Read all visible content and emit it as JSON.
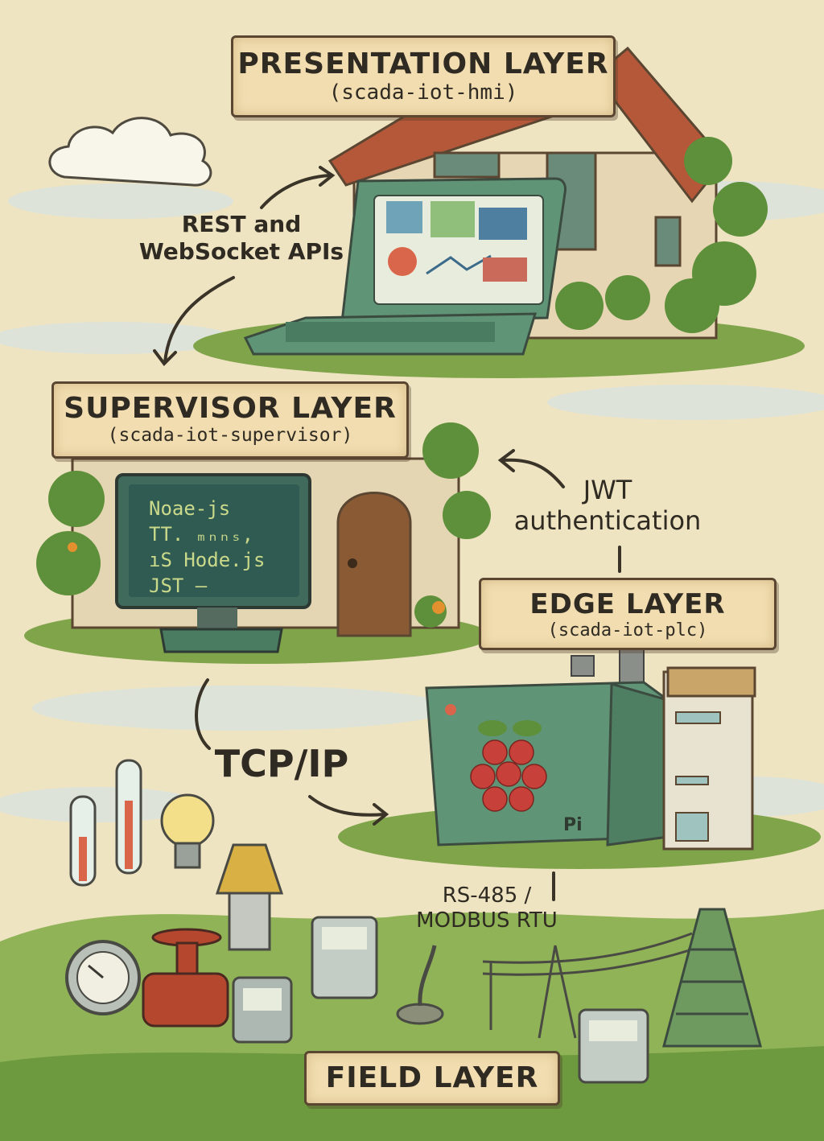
{
  "layers": {
    "presentation": {
      "title": "PRESENTATION LAYER",
      "subtitle": "(scada-iot-hmi)"
    },
    "supervisor": {
      "title": "SUPERVISOR LAYER",
      "subtitle": "(scada-iot-supervisor)"
    },
    "edge": {
      "title": "EDGE LAYER",
      "subtitle": "(scada-iot-plc)"
    },
    "field": {
      "title": "FIELD LAYER"
    }
  },
  "connections": {
    "rest_line1": "REST and",
    "rest_line2": "WebSocket APIs",
    "jwt_line1": "JWT",
    "jwt_line2": "authentication",
    "tcp": "TCP/IP",
    "rs485_line1": "RS-485 /",
    "rs485_line2": "MODBUS RTU"
  },
  "terminal": {
    "line1": "Noae-js",
    "line2": "TT. ₘₙₙₛ,",
    "line3": "ıS Hode.js",
    "line4": "JST –"
  },
  "device_label": "Pi",
  "colors": {
    "background": "#efe4c2",
    "sign": "#f1ddb0",
    "grass": "#7fa44a",
    "device_green": "#5f9576",
    "roof": "#b5583a",
    "ink": "#2f2a22"
  }
}
